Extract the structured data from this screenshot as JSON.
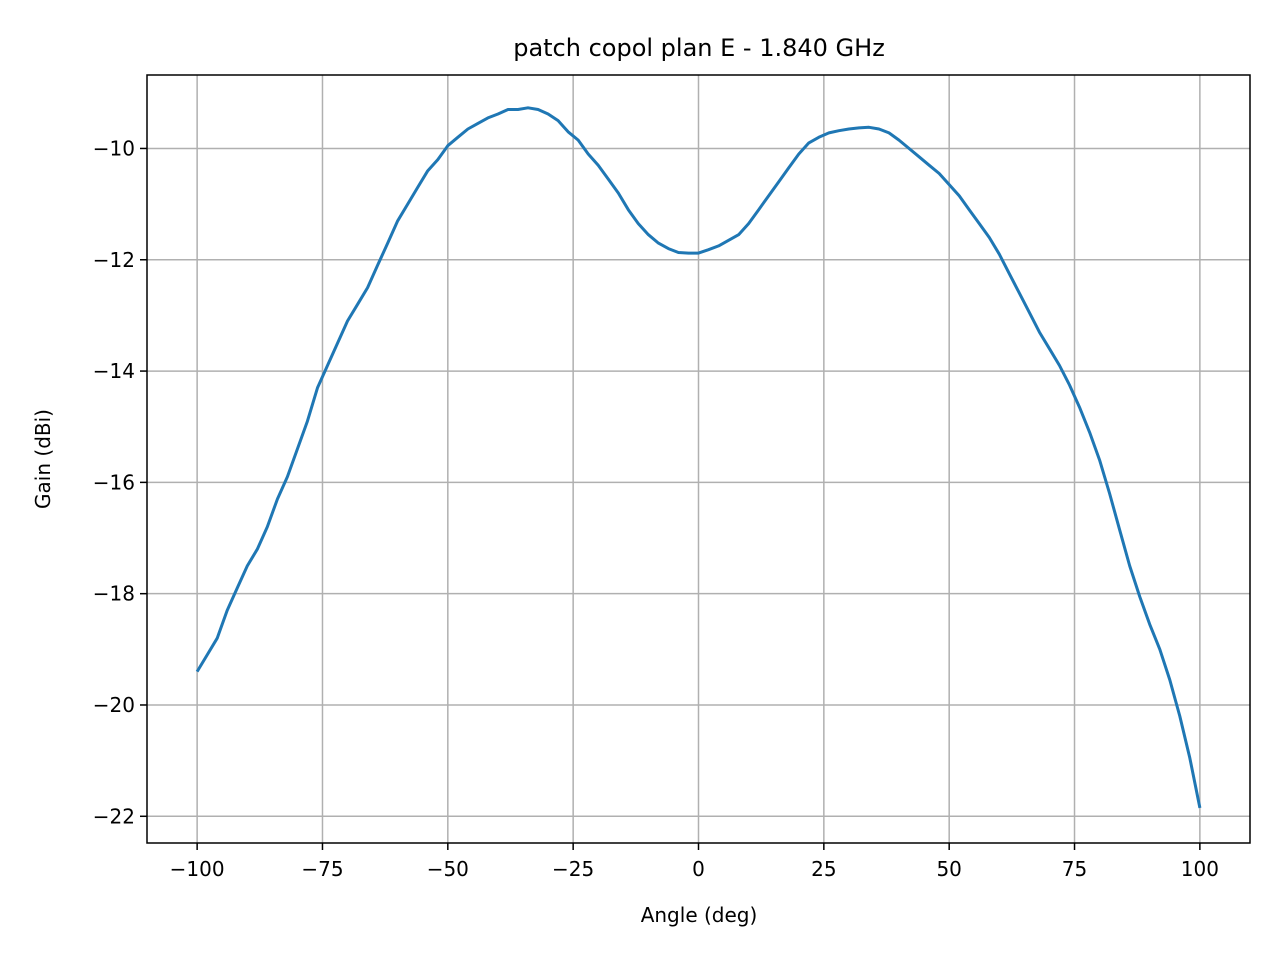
{
  "chart_data": {
    "type": "line",
    "title": "patch copol plan E - 1.840 GHz",
    "xlabel": "Angle (deg)",
    "ylabel": "Gain (dBi)",
    "xlim": [
      -110,
      110
    ],
    "ylim": [
      -22.48,
      -8.68
    ],
    "xticks": [
      -100,
      -75,
      -50,
      -25,
      0,
      25,
      50,
      75,
      100
    ],
    "xtick_labels": [
      "−100",
      "−75",
      "−50",
      "−25",
      "0",
      "25",
      "50",
      "75",
      "100"
    ],
    "yticks": [
      -22,
      -20,
      -18,
      -16,
      -14,
      -12,
      -10
    ],
    "ytick_labels": [
      "−22",
      "−20",
      "−18",
      "−16",
      "−14",
      "−12",
      "−10"
    ],
    "grid": true,
    "series": [
      {
        "color": "#1f77b4",
        "x": [
          -100,
          -98,
          -96,
          -94,
          -92,
          -90,
          -88,
          -86,
          -84,
          -82,
          -80,
          -78,
          -76,
          -74,
          -72,
          -70,
          -68,
          -66,
          -64,
          -62,
          -60,
          -58,
          -56,
          -54,
          -52,
          -50,
          -48,
          -46,
          -44,
          -42,
          -40,
          -38,
          -36,
          -34,
          -32,
          -30,
          -28,
          -26,
          -24,
          -22,
          -20,
          -18,
          -16,
          -14,
          -12,
          -10,
          -8,
          -6,
          -4,
          -2,
          0,
          2,
          4,
          6,
          8,
          10,
          12,
          14,
          16,
          18,
          20,
          22,
          24,
          26,
          28,
          30,
          32,
          34,
          36,
          38,
          40,
          42,
          44,
          46,
          48,
          50,
          52,
          54,
          56,
          58,
          60,
          62,
          64,
          66,
          68,
          70,
          72,
          74,
          76,
          78,
          80,
          82,
          84,
          86,
          88,
          90,
          92,
          94,
          96,
          98,
          100
        ],
        "y": [
          -19.4,
          -19.1,
          -18.8,
          -18.3,
          -17.9,
          -17.5,
          -17.2,
          -16.8,
          -16.3,
          -15.9,
          -15.4,
          -14.9,
          -14.3,
          -13.9,
          -13.5,
          -13.1,
          -12.8,
          -12.5,
          -12.1,
          -11.7,
          -11.3,
          -11.0,
          -10.7,
          -10.4,
          -10.2,
          -9.95,
          -9.8,
          -9.65,
          -9.55,
          -9.45,
          -9.38,
          -9.3,
          -9.3,
          -9.27,
          -9.3,
          -9.38,
          -9.5,
          -9.7,
          -9.85,
          -10.1,
          -10.3,
          -10.55,
          -10.8,
          -11.1,
          -11.35,
          -11.55,
          -11.7,
          -11.8,
          -11.87,
          -11.88,
          -11.88,
          -11.82,
          -11.75,
          -11.65,
          -11.55,
          -11.35,
          -11.1,
          -10.85,
          -10.6,
          -10.35,
          -10.1,
          -9.9,
          -9.8,
          -9.72,
          -9.68,
          -9.65,
          -9.63,
          -9.62,
          -9.65,
          -9.72,
          -9.85,
          -10.0,
          -10.15,
          -10.3,
          -10.45,
          -10.65,
          -10.85,
          -11.1,
          -11.35,
          -11.6,
          -11.9,
          -12.25,
          -12.6,
          -12.95,
          -13.3,
          -13.6,
          -13.9,
          -14.25,
          -14.65,
          -15.1,
          -15.6,
          -16.2,
          -16.85,
          -17.5,
          -18.05,
          -18.55,
          -19.0,
          -19.55,
          -20.2,
          -20.95,
          -21.85
        ]
      }
    ]
  }
}
